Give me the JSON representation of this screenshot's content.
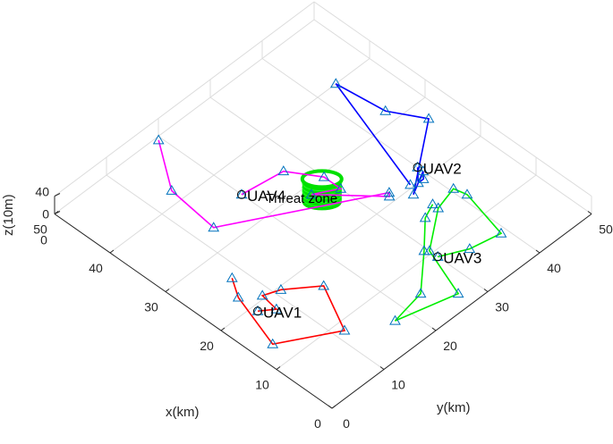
{
  "chart_data": {
    "type": "line",
    "title": "",
    "xlabel": "x(km)",
    "ylabel": "y(km)",
    "zlabel": "z(10m)",
    "xlim": [
      0,
      50
    ],
    "ylim": [
      0,
      50
    ],
    "zlim": [
      0,
      40
    ],
    "x_ticks": [
      "0",
      "10",
      "20",
      "30",
      "40",
      "50"
    ],
    "y_ticks": [
      "0",
      "10",
      "20",
      "30",
      "40",
      "50"
    ],
    "z_ticks": [
      "0",
      "40"
    ],
    "grid": true,
    "threat_zone": {
      "label": "Threat zone",
      "center": [
        28,
        28
      ],
      "color": "#00e000"
    },
    "series": [
      {
        "name": "UAV1",
        "color": "#ff0000",
        "start": [
          19,
          6
        ],
        "points": [
          [
            19,
            6
          ],
          [
            17.5,
            8
          ],
          [
            20.5,
            8.5
          ],
          [
            19.5,
            11
          ],
          [
            16,
            15.5
          ],
          [
            8.5,
            11.5
          ],
          [
            13.5,
            3
          ],
          [
            22.5,
            6
          ],
          [
            25.5,
            8
          ]
        ]
      },
      {
        "name": "UAV2",
        "color": "#0000ff",
        "start": [
          22,
          40
        ],
        "points": [
          [
            22,
            40
          ],
          [
            20,
            38
          ],
          [
            20,
            39
          ],
          [
            21,
            40
          ],
          [
            19,
            36
          ],
          [
            27,
            47.5
          ],
          [
            32,
            44.5
          ],
          [
            40,
            43.5
          ],
          [
            20.5,
            37
          ]
        ]
      },
      {
        "name": "UAV3",
        "color": "#00ee00",
        "start": [
          9,
          30
        ],
        "points": [
          [
            9,
            30
          ],
          [
            7,
            34
          ],
          [
            6,
            39
          ],
          [
            14,
            41
          ],
          [
            16,
            40.5
          ],
          [
            15,
            36.5
          ],
          [
            10.5,
            30
          ],
          [
            2.5,
            27
          ],
          [
            5,
            17.5
          ],
          [
            6,
            23.5
          ],
          [
            11,
            29.5
          ],
          [
            15,
            34
          ],
          [
            16,
            36.5
          ]
        ]
      },
      {
        "name": "UAV4",
        "color": "#ff00ff",
        "start": [
          35,
          20
        ],
        "points": [
          [
            35,
            20
          ],
          [
            34,
            27
          ],
          [
            29.5,
            30
          ],
          [
            26.5,
            30
          ],
          [
            28.5,
            26.5
          ],
          [
            21,
            33.5
          ],
          [
            21.5,
            34
          ],
          [
            33.5,
            13
          ],
          [
            42,
            14
          ],
          [
            49.5,
            19.5
          ]
        ]
      }
    ]
  }
}
